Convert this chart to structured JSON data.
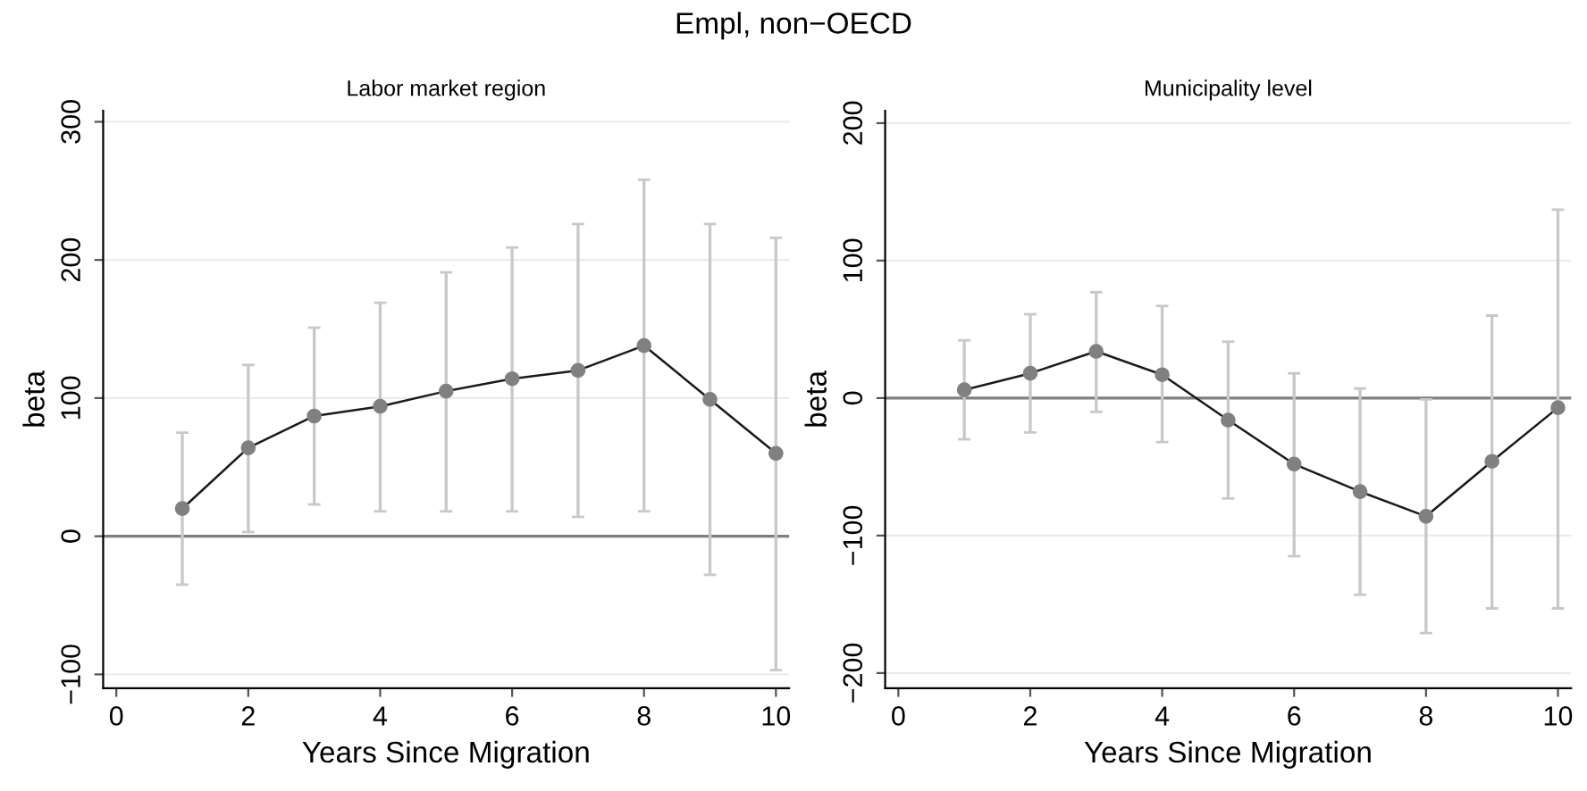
{
  "chart_data": [
    {
      "type": "line",
      "title": "Labor market region",
      "annotations": [
        "Empl, non−OECD"
      ],
      "xlabel": "Years Since Migration",
      "ylabel": "beta",
      "x": [
        1,
        2,
        3,
        4,
        5,
        6,
        7,
        8,
        9,
        10
      ],
      "series": [
        {
          "color": "#1a1a1a",
          "values": [
            20,
            64,
            87,
            94,
            105,
            114,
            120,
            138,
            99,
            60
          ],
          "errors": [
            [
              -35,
              75
            ],
            [
              3,
              124
            ],
            [
              23,
              151
            ],
            [
              18,
              169
            ],
            [
              18,
              191
            ],
            [
              18,
              209
            ],
            [
              14,
              226
            ],
            [
              18,
              258
            ],
            [
              -28,
              226
            ],
            [
              -97,
              216
            ]
          ]
        }
      ],
      "xlim": [
        -0.2,
        10.2
      ],
      "xticks": [
        0,
        2,
        4,
        6,
        8,
        10
      ],
      "ylim": [
        -110,
        308
      ],
      "yticks": [
        -100,
        0,
        100,
        200,
        300
      ],
      "ref_lines": [
        {
          "axis": "y",
          "value": 0,
          "color": "#7f7f7f"
        }
      ],
      "grid": "y",
      "marker": "circle",
      "line_style": "solid",
      "legend": false
    },
    {
      "type": "line",
      "title": "Municipality level",
      "xlabel": "Years Since Migration",
      "ylabel": "beta",
      "x": [
        1,
        2,
        3,
        4,
        5,
        6,
        7,
        8,
        9,
        10
      ],
      "series": [
        {
          "color": "#1a1a1a",
          "values": [
            6,
            18,
            34,
            17,
            -16,
            -48,
            -68,
            -86,
            -46,
            -7
          ],
          "errors": [
            [
              -30,
              42
            ],
            [
              -25,
              61
            ],
            [
              -10,
              77
            ],
            [
              -32,
              67
            ],
            [
              -73,
              41
            ],
            [
              -115,
              18
            ],
            [
              -143,
              7
            ],
            [
              -171,
              -1
            ],
            [
              -153,
              60
            ],
            [
              -153,
              137
            ]
          ]
        }
      ],
      "xlim": [
        -0.2,
        10.2
      ],
      "xticks": [
        0,
        2,
        4,
        6,
        8,
        10
      ],
      "ylim": [
        -211,
        209
      ],
      "yticks": [
        -200,
        -100,
        0,
        100,
        200
      ],
      "ref_lines": [
        {
          "axis": "y",
          "value": 0,
          "color": "#7f7f7f"
        }
      ],
      "grid": "y",
      "marker": "circle",
      "line_style": "solid",
      "legend": false
    }
  ]
}
